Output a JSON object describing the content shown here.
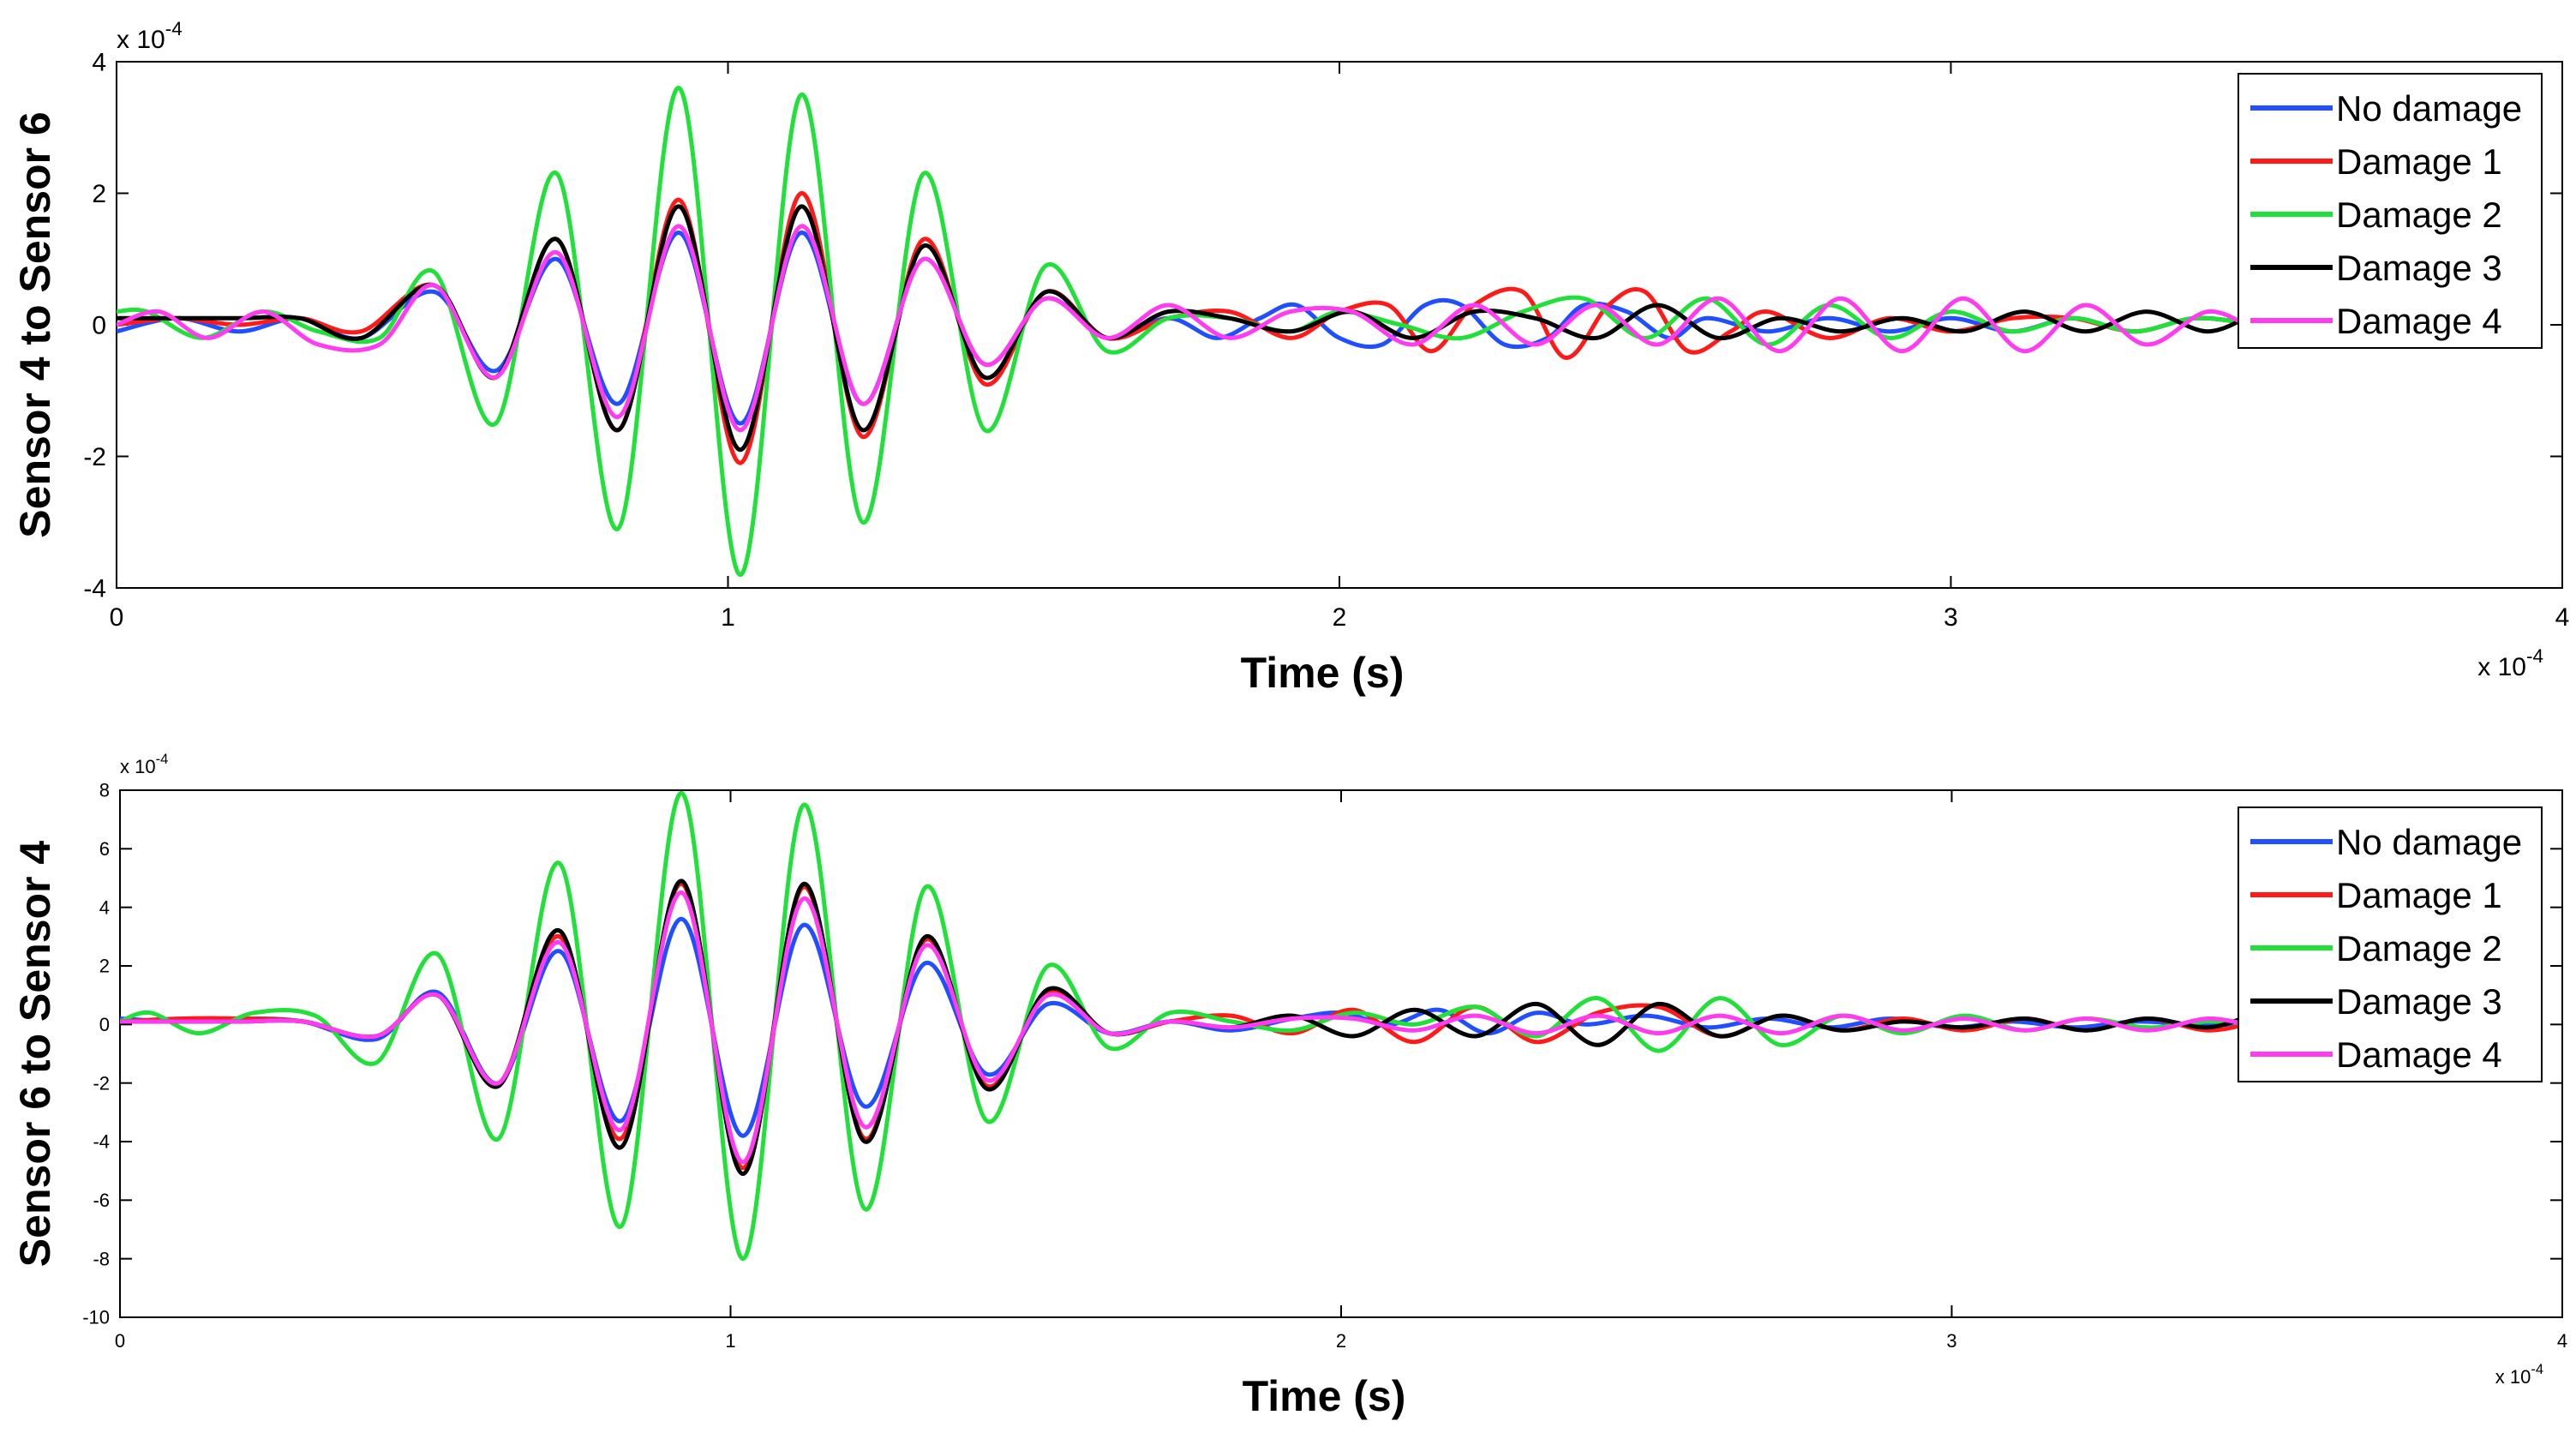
{
  "chart_data": [
    {
      "type": "line",
      "title": "",
      "xlabel": "Time (s)",
      "ylabel": "Sensor 4 to Sensor 6",
      "x_exponent_label": "x 10",
      "x_exponent": "-4",
      "y_exponent_label": "x 10",
      "y_exponent": "-4",
      "xlim": [
        0,
        4
      ],
      "ylim": [
        -4,
        4
      ],
      "xticks": [
        0,
        1,
        2,
        3,
        4
      ],
      "yticks": [
        -4,
        -2,
        0,
        2,
        4
      ],
      "grid": false,
      "legend_position": "top-right",
      "series": [
        {
          "name": "No damage",
          "color": "#1f4fff",
          "x": [
            0,
            0.1,
            0.2,
            0.3,
            0.4,
            0.52,
            0.62,
            0.72,
            0.82,
            0.92,
            1.02,
            1.12,
            1.22,
            1.32,
            1.42,
            1.52,
            1.62,
            1.72,
            1.8,
            1.87,
            1.93,
            2.0,
            2.07,
            2.14,
            2.2,
            2.27,
            2.34,
            2.4,
            2.47,
            2.54,
            2.6,
            2.7,
            2.8,
            2.9,
            3.0,
            3.1,
            3.2,
            3.3,
            3.4,
            3.5
          ],
          "y": [
            -0.1,
            0.1,
            -0.1,
            0.1,
            -0.2,
            0.5,
            -0.7,
            1.0,
            -1.2,
            1.4,
            -1.5,
            1.4,
            -1.2,
            1.0,
            -0.6,
            0.4,
            -0.2,
            0.1,
            -0.2,
            0.1,
            0.3,
            -0.2,
            -0.3,
            0.3,
            0.3,
            -0.3,
            -0.2,
            0.3,
            0.2,
            -0.2,
            0.1,
            -0.1,
            0.1,
            -0.1,
            0.1,
            -0.1,
            0.1,
            -0.1,
            0.1,
            0.0
          ]
        },
        {
          "name": "Damage 1",
          "color": "#ff1a1a",
          "x": [
            0,
            0.1,
            0.2,
            0.3,
            0.4,
            0.52,
            0.62,
            0.72,
            0.82,
            0.92,
            1.02,
            1.12,
            1.22,
            1.32,
            1.42,
            1.52,
            1.62,
            1.72,
            1.82,
            1.92,
            2.0,
            2.08,
            2.15,
            2.22,
            2.3,
            2.37,
            2.44,
            2.5,
            2.57,
            2.64,
            2.7,
            2.8,
            2.9,
            3.0,
            3.1,
            3.2,
            3.3,
            3.4,
            3.5
          ],
          "y": [
            0.0,
            0.1,
            0.0,
            0.1,
            -0.1,
            0.6,
            -0.8,
            1.3,
            -1.6,
            1.9,
            -2.1,
            2.0,
            -1.7,
            1.3,
            -0.9,
            0.5,
            -0.2,
            0.1,
            0.2,
            -0.2,
            0.2,
            0.3,
            -0.4,
            0.3,
            0.5,
            -0.5,
            0.3,
            0.5,
            -0.4,
            -0.1,
            0.2,
            -0.2,
            0.1,
            -0.1,
            0.1,
            0.1,
            -0.1,
            0.1,
            0.0
          ]
        },
        {
          "name": "Damage 2",
          "color": "#22e03a",
          "x": [
            0,
            0.05,
            0.14,
            0.24,
            0.33,
            0.43,
            0.52,
            0.62,
            0.72,
            0.82,
            0.92,
            1.02,
            1.12,
            1.22,
            1.32,
            1.42,
            1.52,
            1.62,
            1.72,
            1.82,
            1.92,
            2.0,
            2.1,
            2.2,
            2.3,
            2.4,
            2.5,
            2.6,
            2.7,
            2.8,
            2.9,
            3.0,
            3.1,
            3.2,
            3.3,
            3.4,
            3.5
          ],
          "y": [
            0.2,
            0.2,
            -0.2,
            0.2,
            -0.1,
            -0.2,
            0.8,
            -1.5,
            2.3,
            -3.1,
            3.6,
            -3.8,
            3.5,
            -3.0,
            2.3,
            -1.6,
            0.9,
            -0.4,
            0.1,
            0.1,
            -0.1,
            0.2,
            0.0,
            -0.2,
            0.2,
            0.4,
            -0.2,
            0.4,
            -0.3,
            0.3,
            -0.2,
            0.2,
            -0.1,
            0.1,
            -0.1,
            0.1,
            0.0
          ]
        },
        {
          "name": "Damage 3",
          "color": "#000000",
          "x": [
            0,
            0.1,
            0.2,
            0.3,
            0.4,
            0.52,
            0.62,
            0.72,
            0.82,
            0.92,
            1.02,
            1.12,
            1.22,
            1.32,
            1.42,
            1.52,
            1.62,
            1.72,
            1.82,
            1.92,
            2.02,
            2.12,
            2.22,
            2.32,
            2.42,
            2.52,
            2.62,
            2.72,
            2.82,
            2.92,
            3.02,
            3.12,
            3.22,
            3.32,
            3.42,
            3.5
          ],
          "y": [
            0.1,
            0.1,
            0.1,
            0.1,
            -0.2,
            0.6,
            -0.8,
            1.3,
            -1.6,
            1.8,
            -1.9,
            1.8,
            -1.6,
            1.2,
            -0.8,
            0.5,
            -0.2,
            0.2,
            0.1,
            -0.1,
            0.2,
            -0.2,
            0.2,
            0.1,
            -0.2,
            0.3,
            -0.2,
            0.1,
            -0.1,
            0.1,
            -0.1,
            0.2,
            -0.1,
            0.2,
            -0.1,
            0.2
          ]
        },
        {
          "name": "Damage 4",
          "color": "#ff3cf0",
          "x": [
            0,
            0.07,
            0.15,
            0.24,
            0.33,
            0.43,
            0.52,
            0.62,
            0.72,
            0.82,
            0.92,
            1.02,
            1.12,
            1.22,
            1.32,
            1.42,
            1.52,
            1.62,
            1.72,
            1.82,
            1.92,
            2.02,
            2.12,
            2.22,
            2.32,
            2.42,
            2.52,
            2.62,
            2.72,
            2.82,
            2.92,
            3.02,
            3.12,
            3.22,
            3.32,
            3.42,
            3.5
          ],
          "y": [
            0.0,
            0.2,
            -0.2,
            0.2,
            -0.3,
            -0.3,
            0.6,
            -0.8,
            1.1,
            -1.4,
            1.5,
            -1.6,
            1.5,
            -1.2,
            1.0,
            -0.6,
            0.4,
            -0.2,
            0.3,
            -0.2,
            0.2,
            0.2,
            -0.3,
            0.3,
            -0.3,
            0.3,
            -0.3,
            0.4,
            -0.4,
            0.4,
            -0.4,
            0.4,
            -0.4,
            0.3,
            -0.3,
            0.2,
            -0.1
          ]
        }
      ]
    },
    {
      "type": "line",
      "title": "",
      "xlabel": "Time (s)",
      "ylabel": "Sensor 6 to Sensor 4",
      "x_exponent_label": "x 10",
      "x_exponent": "-4",
      "y_exponent_label": "x 10",
      "y_exponent": "-4",
      "xlim": [
        0,
        4
      ],
      "ylim": [
        -10,
        8
      ],
      "xticks": [
        0,
        1,
        2,
        3,
        4
      ],
      "yticks": [
        -10,
        -8,
        -6,
        -4,
        -2,
        0,
        2,
        4,
        6,
        8
      ],
      "grid": false,
      "legend_position": "top-right",
      "series": [
        {
          "name": "No damage",
          "color": "#1f4fff",
          "x": [
            0,
            0.1,
            0.2,
            0.3,
            0.42,
            0.52,
            0.62,
            0.72,
            0.82,
            0.92,
            1.02,
            1.12,
            1.22,
            1.32,
            1.42,
            1.52,
            1.62,
            1.72,
            1.82,
            1.92,
            2.0,
            2.08,
            2.16,
            2.24,
            2.32,
            2.4,
            2.5,
            2.6,
            2.7,
            2.8,
            2.9,
            3.0,
            3.1,
            3.2,
            3.3,
            3.4,
            3.5
          ],
          "y": [
            0.2,
            0.1,
            0.2,
            0.1,
            -0.5,
            1.1,
            -2.0,
            2.5,
            -3.3,
            3.6,
            -3.8,
            3.4,
            -2.8,
            2.1,
            -1.7,
            0.7,
            -0.3,
            0.1,
            -0.2,
            0.2,
            0.4,
            0.0,
            0.5,
            -0.3,
            0.4,
            0.0,
            0.3,
            -0.1,
            0.2,
            -0.1,
            0.2,
            -0.1,
            0.1,
            -0.1,
            0.1,
            0.0,
            0.0
          ]
        },
        {
          "name": "Damage 1",
          "color": "#ff1a1a",
          "x": [
            0,
            0.1,
            0.2,
            0.3,
            0.42,
            0.52,
            0.62,
            0.72,
            0.82,
            0.92,
            1.02,
            1.12,
            1.22,
            1.32,
            1.42,
            1.52,
            1.62,
            1.72,
            1.82,
            1.92,
            2.02,
            2.12,
            2.22,
            2.32,
            2.42,
            2.52,
            2.62,
            2.72,
            2.82,
            2.92,
            3.02,
            3.12,
            3.22,
            3.32,
            3.42,
            3.5
          ],
          "y": [
            0.1,
            0.2,
            0.2,
            0.1,
            -0.4,
            1.0,
            -2.0,
            3.0,
            -3.9,
            4.8,
            -4.9,
            4.7,
            -3.9,
            2.9,
            -2.1,
            1.1,
            -0.3,
            0.1,
            0.3,
            -0.3,
            0.5,
            -0.6,
            0.6,
            -0.6,
            0.4,
            0.6,
            -0.4,
            0.3,
            -0.2,
            0.2,
            -0.2,
            0.2,
            -0.2,
            0.2,
            -0.2,
            0.1
          ]
        },
        {
          "name": "Damage 2",
          "color": "#22e03a",
          "x": [
            0,
            0.05,
            0.13,
            0.22,
            0.32,
            0.42,
            0.52,
            0.62,
            0.72,
            0.82,
            0.92,
            1.02,
            1.12,
            1.22,
            1.32,
            1.42,
            1.52,
            1.62,
            1.72,
            1.82,
            1.92,
            2.02,
            2.12,
            2.22,
            2.32,
            2.42,
            2.52,
            2.62,
            2.72,
            2.82,
            2.92,
            3.02,
            3.12,
            3.22,
            3.32,
            3.42,
            3.5
          ],
          "y": [
            0.1,
            0.4,
            -0.3,
            0.4,
            0.3,
            -1.3,
            2.4,
            -3.9,
            5.5,
            -6.9,
            7.9,
            -8.0,
            7.5,
            -6.3,
            4.7,
            -3.3,
            2.0,
            -0.8,
            0.4,
            0.1,
            -0.2,
            0.4,
            0.0,
            0.6,
            -0.4,
            0.9,
            -0.9,
            0.9,
            -0.7,
            0.3,
            -0.3,
            0.3,
            -0.2,
            0.2,
            -0.1,
            0.1,
            0.0
          ]
        },
        {
          "name": "Damage 3",
          "color": "#000000",
          "x": [
            0,
            0.1,
            0.2,
            0.3,
            0.42,
            0.52,
            0.62,
            0.72,
            0.82,
            0.92,
            1.02,
            1.12,
            1.22,
            1.32,
            1.42,
            1.52,
            1.62,
            1.72,
            1.82,
            1.92,
            2.02,
            2.12,
            2.22,
            2.32,
            2.42,
            2.52,
            2.62,
            2.72,
            2.82,
            2.92,
            3.02,
            3.12,
            3.22,
            3.32,
            3.42,
            3.5
          ],
          "y": [
            0.1,
            0.1,
            0.1,
            0.1,
            -0.4,
            1.0,
            -2.1,
            3.2,
            -4.2,
            4.9,
            -5.1,
            4.8,
            -4.0,
            3.0,
            -2.2,
            1.2,
            -0.3,
            0.1,
            -0.1,
            0.3,
            -0.4,
            0.5,
            -0.4,
            0.7,
            -0.7,
            0.7,
            -0.4,
            0.3,
            -0.2,
            0.1,
            -0.1,
            0.2,
            -0.2,
            0.2,
            -0.1,
            0.4
          ]
        },
        {
          "name": "Damage 4",
          "color": "#ff3cf0",
          "x": [
            0,
            0.1,
            0.2,
            0.3,
            0.42,
            0.52,
            0.62,
            0.72,
            0.82,
            0.92,
            1.02,
            1.12,
            1.22,
            1.32,
            1.42,
            1.52,
            1.62,
            1.72,
            1.82,
            1.92,
            2.02,
            2.12,
            2.22,
            2.32,
            2.42,
            2.52,
            2.62,
            2.72,
            2.82,
            2.92,
            3.02,
            3.12,
            3.22,
            3.32,
            3.42,
            3.5
          ],
          "y": [
            0.1,
            0.1,
            0.1,
            0.1,
            -0.4,
            1.0,
            -2.0,
            2.8,
            -3.6,
            4.5,
            -4.7,
            4.3,
            -3.5,
            2.7,
            -1.9,
            1.0,
            -0.3,
            0.1,
            -0.1,
            0.2,
            0.2,
            -0.2,
            0.3,
            -0.3,
            0.3,
            -0.3,
            0.3,
            -0.3,
            0.3,
            -0.2,
            0.2,
            -0.2,
            0.2,
            -0.2,
            0.2,
            -0.1
          ]
        }
      ]
    }
  ]
}
